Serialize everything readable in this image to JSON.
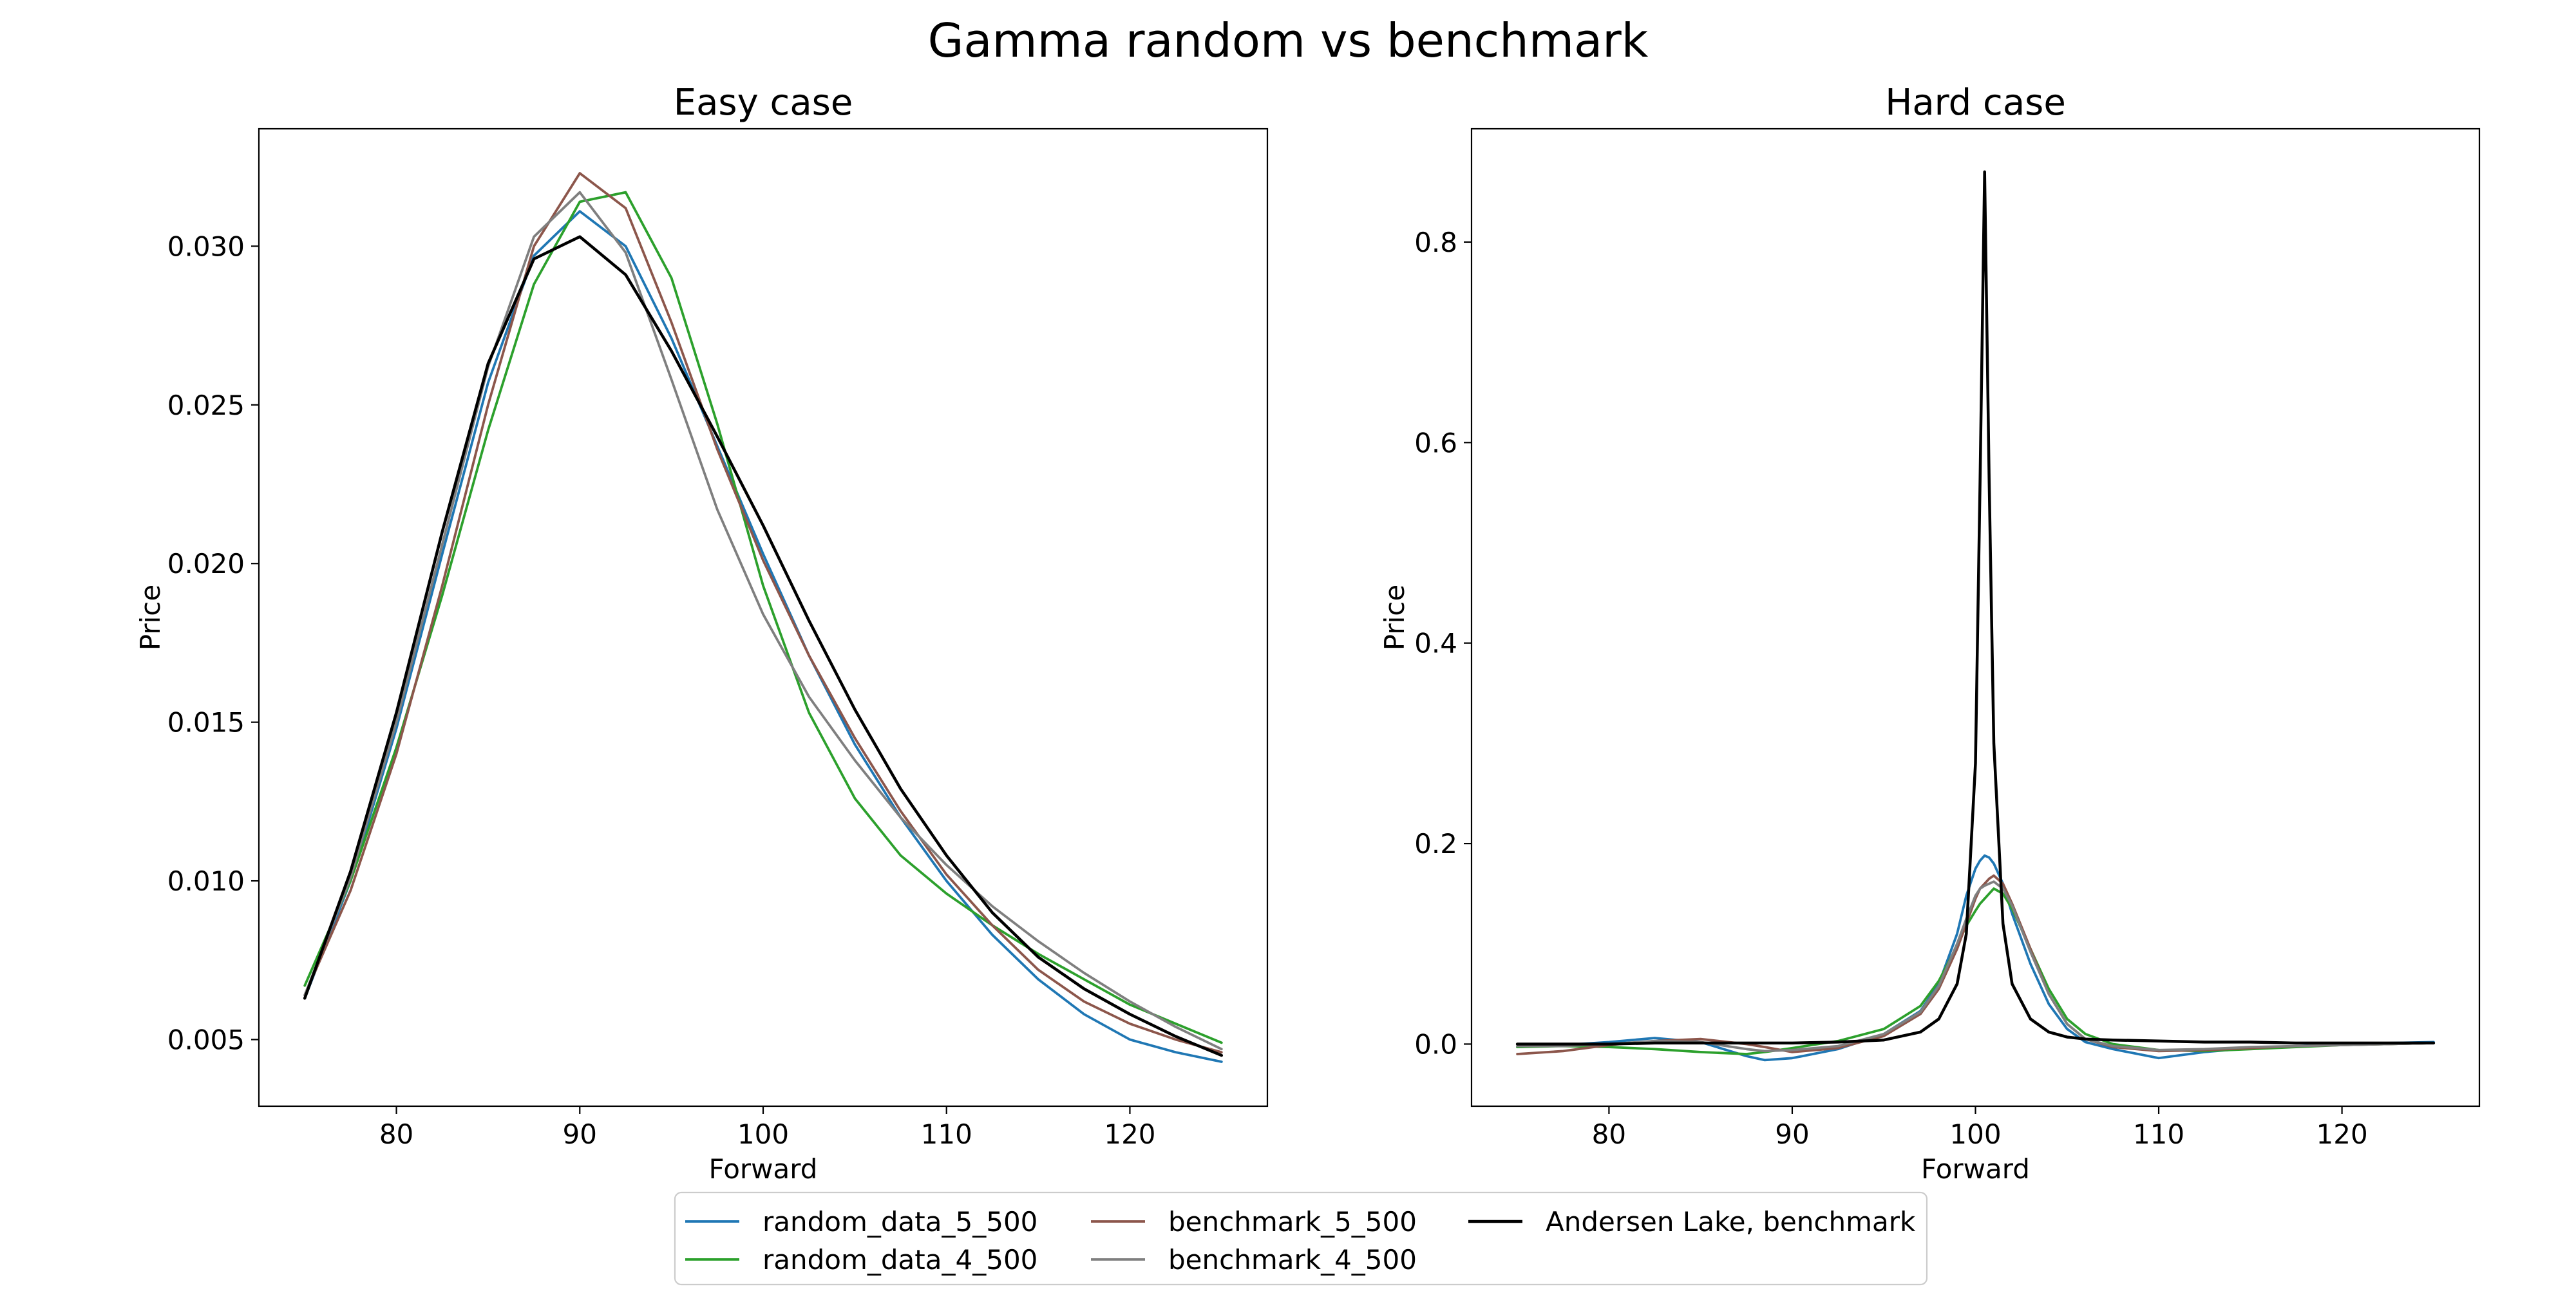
{
  "figure": {
    "title": "Gamma random vs benchmark"
  },
  "legend": {
    "placement": "bottom-center",
    "columns": 3
  },
  "chart_data": [
    {
      "type": "line",
      "title": "Easy case",
      "xlabel": "Forward",
      "ylabel": "Price",
      "xlim": [
        72.5,
        127.5
      ],
      "ylim": [
        0.0029,
        0.0337
      ],
      "xticks": [
        80,
        90,
        100,
        110,
        120
      ],
      "yticks": [
        0.005,
        0.01,
        0.015,
        0.02,
        0.025,
        0.03
      ],
      "yticklabels": [
        "0.005",
        "0.010",
        "0.015",
        "0.020",
        "0.025",
        "0.030"
      ],
      "grid": false,
      "x": [
        75,
        77.5,
        80,
        82.5,
        85,
        87.5,
        90,
        92.5,
        95,
        97.5,
        100,
        102.5,
        105,
        107.5,
        110,
        112.5,
        115,
        117.5,
        120,
        122.5,
        125
      ],
      "series": [
        {
          "name": "random_data_5_500",
          "color": "#1f77b4",
          "values": [
            0.0063,
            0.01,
            0.0148,
            0.0203,
            0.0257,
            0.0297,
            0.0311,
            0.03,
            0.0271,
            0.0237,
            0.0203,
            0.0171,
            0.0143,
            0.012,
            0.01,
            0.0083,
            0.0069,
            0.0058,
            0.005,
            0.0046,
            0.0043
          ]
        },
        {
          "name": "random_data_4_500",
          "color": "#2ca02c",
          "values": [
            0.0067,
            0.01,
            0.0142,
            0.019,
            0.0242,
            0.0288,
            0.0314,
            0.0317,
            0.029,
            0.0244,
            0.0193,
            0.0153,
            0.0126,
            0.0108,
            0.0096,
            0.0086,
            0.0077,
            0.0069,
            0.0061,
            0.0055,
            0.0049
          ]
        },
        {
          "name": "benchmark_5_500",
          "color": "#8c564b",
          "values": [
            0.0064,
            0.0097,
            0.014,
            0.0193,
            0.025,
            0.03,
            0.0323,
            0.0312,
            0.0276,
            0.0236,
            0.0201,
            0.0171,
            0.0145,
            0.0122,
            0.0102,
            0.0086,
            0.0072,
            0.0062,
            0.0055,
            0.005,
            0.0046
          ]
        },
        {
          "name": "benchmark_4_500",
          "color": "#7f7f7f",
          "values": [
            0.0064,
            0.0101,
            0.015,
            0.0206,
            0.0262,
            0.0303,
            0.0317,
            0.0298,
            0.0258,
            0.0217,
            0.0184,
            0.0158,
            0.0138,
            0.012,
            0.0105,
            0.0092,
            0.0081,
            0.0071,
            0.0062,
            0.0054,
            0.0047
          ]
        },
        {
          "name": "Andersen Lake, benchmark",
          "color": "#000000",
          "values": [
            0.0063,
            0.0103,
            0.0153,
            0.021,
            0.0263,
            0.0296,
            0.0303,
            0.0291,
            0.0267,
            0.024,
            0.0212,
            0.0182,
            0.0154,
            0.0129,
            0.0108,
            0.009,
            0.0076,
            0.0066,
            0.0058,
            0.0051,
            0.0045
          ]
        }
      ]
    },
    {
      "type": "line",
      "title": "Hard case",
      "xlabel": "Forward",
      "ylabel": "Price",
      "xlim": [
        72.5,
        127.5
      ],
      "ylim": [
        -0.062,
        0.913
      ],
      "xticks": [
        80,
        90,
        100,
        110,
        120
      ],
      "yticks": [
        0.0,
        0.2,
        0.4,
        0.6,
        0.8
      ],
      "yticklabels": [
        "0.0",
        "0.2",
        "0.4",
        "0.6",
        "0.8"
      ],
      "grid": false,
      "x": [
        75,
        77.5,
        80,
        82.5,
        85,
        87.5,
        88.5,
        90,
        92.5,
        95,
        97,
        98,
        99,
        99.5,
        100,
        100.25,
        100.5,
        100.75,
        101,
        101.5,
        102,
        103,
        104,
        105,
        106,
        107.5,
        110,
        112.5,
        115,
        117.5,
        120,
        122.5,
        125
      ],
      "series": [
        {
          "name": "random_data_5_500",
          "color": "#1f77b4",
          "values": [
            -0.003,
            -0.001,
            0.002,
            0.006,
            0.002,
            -0.012,
            -0.016,
            -0.014,
            -0.005,
            0.01,
            0.033,
            0.06,
            0.11,
            0.148,
            0.175,
            0.183,
            0.188,
            0.186,
            0.18,
            0.16,
            0.13,
            0.08,
            0.04,
            0.015,
            0.002,
            -0.005,
            -0.014,
            -0.008,
            -0.004,
            -0.002,
            0.0,
            0.001,
            0.002
          ]
        },
        {
          "name": "random_data_4_500",
          "color": "#2ca02c",
          "values": [
            -0.003,
            -0.002,
            -0.003,
            -0.005,
            -0.008,
            -0.01,
            -0.008,
            -0.004,
            0.003,
            0.015,
            0.038,
            0.063,
            0.098,
            0.118,
            0.133,
            0.14,
            0.145,
            0.15,
            0.155,
            0.15,
            0.135,
            0.095,
            0.055,
            0.025,
            0.01,
            0.0,
            -0.006,
            -0.007,
            -0.005,
            -0.003,
            -0.001,
            0.0,
            0.001
          ]
        },
        {
          "name": "benchmark_5_500",
          "color": "#8c564b",
          "values": [
            -0.01,
            -0.007,
            -0.001,
            0.003,
            0.005,
            0.0,
            -0.003,
            -0.008,
            -0.004,
            0.008,
            0.03,
            0.055,
            0.095,
            0.12,
            0.145,
            0.155,
            0.16,
            0.165,
            0.168,
            0.16,
            0.14,
            0.095,
            0.05,
            0.02,
            0.005,
            -0.003,
            -0.007,
            -0.006,
            -0.004,
            -0.002,
            -0.001,
            0.0,
            0.001
          ]
        },
        {
          "name": "benchmark_4_500",
          "color": "#7f7f7f",
          "values": [
            -0.002,
            -0.002,
            0.0,
            0.003,
            0.002,
            -0.005,
            -0.007,
            -0.006,
            -0.002,
            0.01,
            0.032,
            0.058,
            0.1,
            0.125,
            0.148,
            0.155,
            0.158,
            0.16,
            0.162,
            0.155,
            0.138,
            0.092,
            0.05,
            0.02,
            0.005,
            -0.002,
            -0.006,
            -0.005,
            -0.003,
            -0.002,
            -0.001,
            0.0,
            0.001
          ]
        },
        {
          "name": "Andersen Lake, benchmark",
          "color": "#000000",
          "values": [
            0.0,
            0.0,
            0.0,
            0.001,
            0.001,
            0.001,
            0.001,
            0.001,
            0.002,
            0.004,
            0.012,
            0.025,
            0.06,
            0.11,
            0.28,
            0.56,
            0.87,
            0.56,
            0.3,
            0.12,
            0.06,
            0.025,
            0.012,
            0.007,
            0.005,
            0.004,
            0.003,
            0.002,
            0.002,
            0.001,
            0.001,
            0.001,
            0.001
          ]
        }
      ]
    }
  ]
}
